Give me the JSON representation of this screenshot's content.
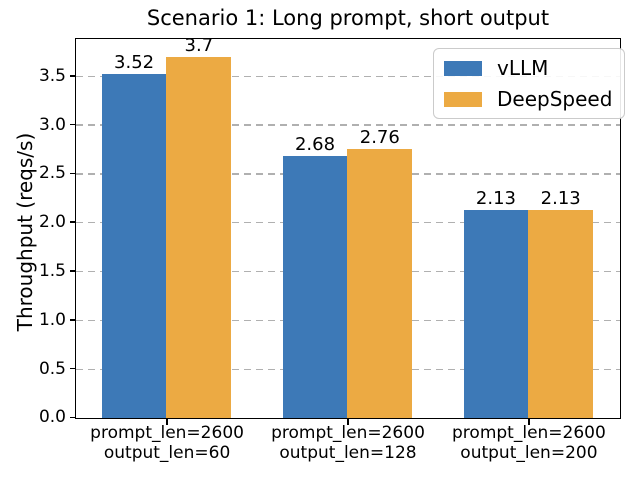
{
  "chart_data": {
    "type": "bar",
    "title": "Scenario 1: Long prompt, short output",
    "ylabel": "Throughput (reqs/s)",
    "xlabel": "",
    "categories": [
      "prompt_len=2600\noutput_len=60",
      "prompt_len=2600\noutput_len=128",
      "prompt_len=2600\noutput_len=200"
    ],
    "series": [
      {
        "name": "vLLM",
        "color": "#3d79b7",
        "values": [
          3.52,
          2.68,
          2.13
        ],
        "bar_labels": [
          "3.52",
          "2.68",
          "2.13"
        ]
      },
      {
        "name": "DeepSpeed",
        "color": "#ecaa43",
        "values": [
          3.7,
          2.76,
          2.13
        ],
        "bar_labels": [
          "3.7",
          "2.76",
          "2.13"
        ]
      }
    ],
    "ylim": [
      0,
      3.87
    ],
    "yticks": [
      0.0,
      0.5,
      1.0,
      1.5,
      2.0,
      2.5,
      3.0,
      3.5
    ],
    "ytick_labels": [
      "0.0",
      "0.5",
      "1.0",
      "1.5",
      "2.0",
      "2.5",
      "3.0",
      "3.5"
    ],
    "grid": "horizontal-dashed",
    "legend_position": "upper right"
  },
  "colors": {
    "grid": "#b0b0b0",
    "spine": "#000000",
    "background": "#ffffff",
    "text": "#000000"
  }
}
